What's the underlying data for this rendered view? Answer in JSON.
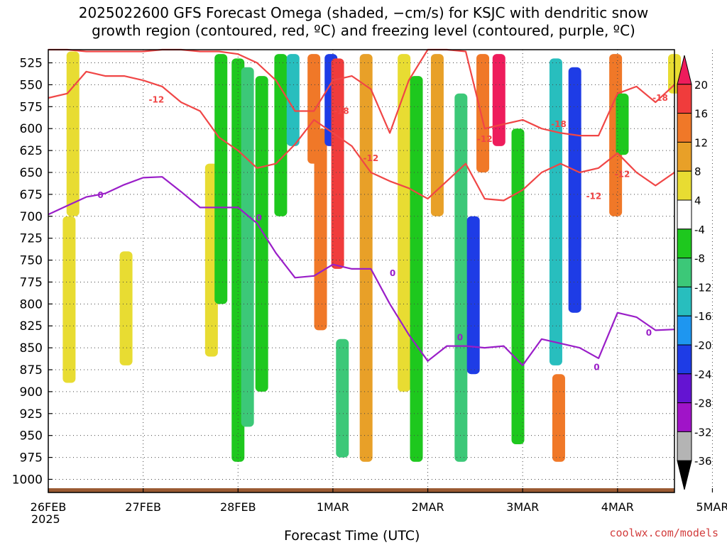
{
  "title": "2025022600 GFS Forecast Omega (shaded, −cm/s) for KSJC with dendritic snow\ngrowth region (contoured, red, ºC) and freezing level (contoured, purple, ºC)",
  "credit": "coolwx.com/models",
  "chart_data": {
    "type": "heatmap",
    "xlabel": "Forecast Time (UTC)",
    "x_year_label": "2025",
    "x_ticks": [
      "26FEB",
      "27FEB",
      "28FEB",
      "1MAR",
      "2MAR",
      "3MAR",
      "4MAR",
      "5MAR"
    ],
    "x_range_days": [
      0,
      6.6
    ],
    "ylabel": "",
    "y_ticks": [
      525,
      550,
      575,
      600,
      625,
      650,
      675,
      700,
      725,
      750,
      775,
      800,
      825,
      850,
      875,
      900,
      925,
      950,
      975,
      1000
    ],
    "y_range_hpa": [
      510,
      1015
    ],
    "grid": true,
    "colorbar": {
      "labels": [
        "20",
        "16",
        "12",
        "8",
        "4",
        "-4",
        "-8",
        "-12",
        "-16",
        "-20",
        "-24",
        "-28",
        "-32",
        "-36"
      ],
      "colors": [
        "#ee1c5c",
        "#f03c3c",
        "#f07828",
        "#e8a028",
        "#e8dc32",
        "#ffffff",
        "#1ec81e",
        "#3cc878",
        "#28bebe",
        "#1e96f0",
        "#1e3ce6",
        "#6414d2",
        "#a014c8",
        "#b4b4b4",
        "#000000"
      ]
    },
    "omega_patches": [
      {
        "day": 0.26,
        "p0": 512,
        "p1": 700,
        "level": 4
      },
      {
        "day": 0.22,
        "p0": 700,
        "p1": 890,
        "level": 4
      },
      {
        "day": 0.82,
        "p0": 740,
        "p1": 870,
        "level": 4
      },
      {
        "day": 1.72,
        "p0": 640,
        "p1": 860,
        "level": 4
      },
      {
        "day": 1.82,
        "p0": 515,
        "p1": 800,
        "level": -8
      },
      {
        "day": 2.0,
        "p0": 520,
        "p1": 980,
        "level": -8
      },
      {
        "day": 2.1,
        "p0": 530,
        "p1": 940,
        "level": -12
      },
      {
        "day": 2.25,
        "p0": 540,
        "p1": 900,
        "level": -8
      },
      {
        "day": 2.45,
        "p0": 515,
        "p1": 700,
        "level": -8
      },
      {
        "day": 2.58,
        "p0": 515,
        "p1": 620,
        "level": -16
      },
      {
        "day": 2.8,
        "p0": 515,
        "p1": 640,
        "level": 12
      },
      {
        "day": 2.87,
        "p0": 600,
        "p1": 830,
        "level": 12
      },
      {
        "day": 2.98,
        "p0": 515,
        "p1": 620,
        "level": -24
      },
      {
        "day": 3.05,
        "p0": 520,
        "p1": 760,
        "level": 16
      },
      {
        "day": 3.1,
        "p0": 840,
        "p1": 975,
        "level": -12
      },
      {
        "day": 3.35,
        "p0": 515,
        "p1": 980,
        "level": 8
      },
      {
        "day": 3.75,
        "p0": 515,
        "p1": 900,
        "level": 4
      },
      {
        "day": 3.88,
        "p0": 540,
        "p1": 980,
        "level": -8
      },
      {
        "day": 4.1,
        "p0": 515,
        "p1": 700,
        "level": 8
      },
      {
        "day": 4.35,
        "p0": 560,
        "p1": 980,
        "level": -12
      },
      {
        "day": 4.48,
        "p0": 700,
        "p1": 880,
        "level": -24
      },
      {
        "day": 4.58,
        "p0": 515,
        "p1": 650,
        "level": 12
      },
      {
        "day": 4.75,
        "p0": 515,
        "p1": 620,
        "level": 20
      },
      {
        "day": 4.95,
        "p0": 600,
        "p1": 960,
        "level": -8
      },
      {
        "day": 5.35,
        "p0": 520,
        "p1": 870,
        "level": -16
      },
      {
        "day": 5.38,
        "p0": 880,
        "p1": 980,
        "level": 12
      },
      {
        "day": 5.55,
        "p0": 610,
        "p1": 740,
        "level": -36
      },
      {
        "day": 5.55,
        "p0": 530,
        "p1": 810,
        "level": -24
      },
      {
        "day": 5.98,
        "p0": 515,
        "p1": 700,
        "level": 12
      },
      {
        "day": 6.05,
        "p0": 560,
        "p1": 630,
        "level": -8
      },
      {
        "day": 6.6,
        "p0": 515,
        "p1": 560,
        "level": 4
      }
    ],
    "freezing_level": {
      "label": "0",
      "color": "#9a1ec8",
      "x_days": [
        0,
        0.2,
        0.4,
        0.6,
        0.8,
        1.0,
        1.2,
        1.4,
        1.6,
        1.8,
        2.0,
        2.2,
        2.4,
        2.6,
        2.8,
        3.0,
        3.2,
        3.4,
        3.6,
        3.8,
        4.0,
        4.2,
        4.4,
        4.6,
        4.8,
        5.0,
        5.2,
        5.4,
        5.6,
        5.8,
        6.0,
        6.2,
        6.4,
        6.6
      ],
      "y_hpa": [
        698,
        688,
        678,
        674,
        664,
        656,
        655,
        672,
        690,
        690,
        690,
        708,
        742,
        770,
        768,
        755,
        760,
        760,
        800,
        835,
        865,
        848,
        848,
        850,
        848,
        870,
        840,
        845,
        850,
        862,
        810,
        815,
        830,
        829
      ]
    },
    "dgz_top": {
      "label": "-18",
      "color": "#f04646",
      "x_days": [
        0,
        0.2,
        0.4,
        0.6,
        0.8,
        1.0,
        1.2,
        1.4,
        1.6,
        1.8,
        2.0,
        2.2,
        2.4,
        2.6,
        2.8,
        3.0,
        3.2,
        3.4,
        3.6,
        3.8,
        4.0,
        4.2,
        4.4,
        4.6,
        4.8,
        5.0,
        5.2,
        5.4,
        5.6,
        5.8,
        6.0,
        6.2,
        6.4,
        6.6
      ],
      "y_hpa": [
        510,
        510,
        512,
        512,
        512,
        512,
        510,
        510,
        512,
        512,
        515,
        525,
        545,
        580,
        580,
        545,
        540,
        555,
        605,
        545,
        510,
        510,
        512,
        600,
        595,
        590,
        600,
        605,
        608,
        608,
        560,
        552,
        570,
        550
      ]
    },
    "dgz_bottom": {
      "label": "-12",
      "color": "#f04646",
      "x_days": [
        0,
        0.2,
        0.4,
        0.6,
        0.8,
        1.0,
        1.2,
        1.4,
        1.6,
        1.8,
        2.0,
        2.2,
        2.4,
        2.6,
        2.8,
        3.0,
        3.2,
        3.4,
        3.6,
        3.8,
        4.0,
        4.2,
        4.4,
        4.6,
        4.8,
        5.0,
        5.2,
        5.4,
        5.6,
        5.8,
        6.0,
        6.2,
        6.4,
        6.6
      ],
      "y_hpa": [
        565,
        560,
        535,
        540,
        540,
        545,
        552,
        570,
        580,
        610,
        625,
        645,
        640,
        618,
        590,
        605,
        620,
        650,
        660,
        668,
        680,
        660,
        640,
        680,
        682,
        670,
        650,
        640,
        650,
        645,
        628,
        650,
        665,
        650
      ]
    },
    "contour_labels": [
      {
        "text": "-12",
        "day": 1.14,
        "hpa": 567,
        "color": "#f04646"
      },
      {
        "text": "-18",
        "day": 3.09,
        "hpa": 580,
        "color": "#f04646"
      },
      {
        "text": "-12",
        "day": 3.4,
        "hpa": 634,
        "color": "#f04646"
      },
      {
        "text": "-12",
        "day": 4.6,
        "hpa": 612,
        "color": "#f04646"
      },
      {
        "text": "-18",
        "day": 5.38,
        "hpa": 595,
        "color": "#f04646"
      },
      {
        "text": "-12",
        "day": 5.75,
        "hpa": 677,
        "color": "#f04646"
      },
      {
        "text": "-18",
        "day": 6.45,
        "hpa": 565,
        "color": "#f04646"
      },
      {
        "text": "-12",
        "day": 6.05,
        "hpa": 652,
        "color": "#f04646"
      },
      {
        "text": "0",
        "day": 0.55,
        "hpa": 676,
        "color": "#9a1ec8"
      },
      {
        "text": "0",
        "day": 2.22,
        "hpa": 702,
        "color": "#9a1ec8"
      },
      {
        "text": "0",
        "day": 3.63,
        "hpa": 765,
        "color": "#9a1ec8"
      },
      {
        "text": "0",
        "day": 4.34,
        "hpa": 838,
        "color": "#9a1ec8"
      },
      {
        "text": "0",
        "day": 5.78,
        "hpa": 872,
        "color": "#9a1ec8"
      },
      {
        "text": "0",
        "day": 6.33,
        "hpa": 833,
        "color": "#9a1ec8"
      }
    ]
  }
}
